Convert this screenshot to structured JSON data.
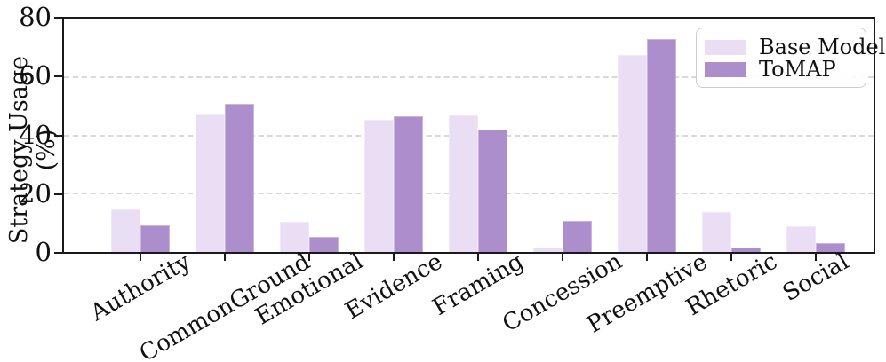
{
  "chart_data": {
    "type": "bar",
    "title": "",
    "xlabel": "",
    "ylabel": "Strategy Usage (%)",
    "ylim": [
      0,
      80
    ],
    "yticks": [
      0,
      20,
      40,
      60,
      80
    ],
    "grid": "horizontal dashed gridlines at 20, 40, 60",
    "legend_position": "upper right",
    "categories": [
      "Authority",
      "CommonGround",
      "Emotional",
      "Evidence",
      "Framing",
      "Concession",
      "Preemptive",
      "Rhetoric",
      "Social"
    ],
    "series": [
      {
        "name": "Base Model",
        "color": "#eadef5",
        "values": [
          14.7,
          47.2,
          10.4,
          45.3,
          46.8,
          1.6,
          67.4,
          13.6,
          8.9
        ]
      },
      {
        "name": "ToMAP",
        "color": "#ac8ecc",
        "values": [
          9.1,
          50.8,
          5.3,
          46.5,
          42.0,
          10.5,
          72.9,
          1.6,
          3.0
        ]
      }
    ]
  },
  "axes": {
    "y_title": "Strategy Usage (%)"
  },
  "legend": {
    "items": [
      {
        "label": "Base Model",
        "color": "#eadef5"
      },
      {
        "label": "ToMAP",
        "color": "#ac8ecc"
      }
    ]
  },
  "colors": {
    "base_model_bar": "#eadef5",
    "tomap_bar": "#ac8ecc",
    "spine": "#1a1a1a",
    "gridline": "#d9d9d9",
    "background": "#ffffff",
    "text": "#111111"
  }
}
